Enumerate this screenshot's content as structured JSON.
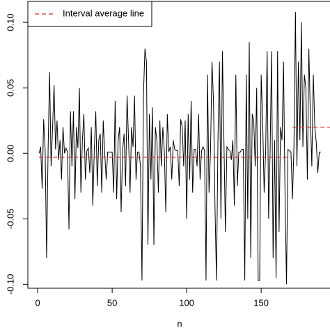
{
  "chart_data": {
    "type": "line",
    "x_label": "n",
    "x": [
      1,
      2,
      3,
      4,
      5,
      6,
      7,
      8,
      9,
      10,
      11,
      12,
      13,
      14,
      15,
      16,
      17,
      18,
      19,
      20,
      21,
      22,
      23,
      24,
      25,
      26,
      27,
      28,
      29,
      30,
      31,
      32,
      33,
      34,
      35,
      36,
      37,
      38,
      39,
      40,
      41,
      42,
      43,
      44,
      45,
      46,
      47,
      48,
      49,
      50,
      51,
      52,
      53,
      54,
      55,
      56,
      57,
      58,
      59,
      60,
      61,
      62,
      63,
      64,
      65,
      66,
      67,
      68,
      69,
      70,
      71,
      72,
      73,
      74,
      75,
      76,
      77,
      78,
      79,
      80,
      81,
      82,
      83,
      84,
      85,
      86,
      87,
      88,
      89,
      90,
      91,
      92,
      93,
      94,
      95,
      96,
      97,
      98,
      99,
      100,
      101,
      102,
      103,
      104,
      105,
      106,
      107,
      108,
      109,
      110,
      111,
      112,
      113,
      114,
      115,
      116,
      117,
      118,
      119,
      120,
      121,
      122,
      123,
      124,
      125,
      126,
      127,
      128,
      129,
      130,
      131,
      132,
      133,
      134,
      135,
      136,
      137,
      138,
      139,
      140,
      141,
      142,
      143,
      144,
      145,
      146,
      147,
      148,
      149,
      150,
      151,
      152,
      153,
      154,
      155,
      156,
      157,
      158,
      159,
      160,
      161,
      162,
      163,
      164,
      165,
      166,
      167,
      168,
      169,
      170,
      171,
      172,
      173,
      174,
      175,
      176,
      177,
      178,
      179,
      180,
      181,
      182,
      183,
      184,
      185,
      186,
      187,
      188,
      189,
      190
    ],
    "series": [
      {
        "color": "#000000",
        "values": [
          0,
          0.005,
          -0.027,
          0.026,
          0.003,
          -0.08,
          0.003,
          0.062,
          -0.01,
          0.02,
          0.052,
          0.003,
          0.025,
          -0.005,
          0.01,
          -0.02,
          0.02,
          0,
          0.004,
          0.001,
          -0.058,
          0.032,
          -0.01,
          0.032,
          -0.035,
          0.02,
          0.004,
          0.05,
          -0.03,
          0.01,
          0.03,
          -0.02,
          0.002,
          0.004,
          -0.015,
          0.02,
          -0.04,
          0.003,
          0.032,
          -0.025,
          0.01,
          0.015,
          -0.03,
          0.025,
          0,
          -0.02,
          0.001,
          0.001,
          0.001,
          0.001,
          -0.03,
          0.04,
          -0.035,
          0.01,
          0.02,
          -0.045,
          0.002,
          0.015,
          -0.025,
          0.044,
          0.01,
          -0.03,
          0.02,
          0.005,
          0.044,
          -0.02,
          0.001,
          0.001,
          -0.01,
          -0.097,
          0.045,
          0.08,
          0.07,
          -0.07,
          0.03,
          -0.02,
          0.035,
          -0.07,
          0.02,
          0.01,
          -0.03,
          0.025,
          -0.01,
          0.02,
          0.002,
          -0.045,
          0.03,
          0.001,
          0.005,
          -0.02,
          0.01,
          0.003,
          0.002,
          0.002,
          -0.025,
          0.026,
          0.02,
          -0.01,
          0.025,
          -0.05,
          0.03,
          -0.02,
          0.04,
          -0.03,
          0.003,
          0.003,
          -0.01,
          0.03,
          -0.02,
          0.002,
          0.005,
          0.002,
          -0.097,
          0.06,
          -0.03,
          0.001,
          0.07,
          0.04,
          -0.04,
          -0.097,
          0.01,
          0.07,
          -0.05,
          0.078,
          0.01,
          -0.06,
          0.005,
          0.003,
          0.002,
          -0.005,
          0.01,
          -0.04,
          0.06,
          -0.025,
          0.001,
          0.001,
          0.003,
          0.003,
          -0.097,
          0.06,
          -0.05,
          0.085,
          -0.08,
          0.03,
          0.025,
          -0.01,
          0.05,
          -0.097,
          -0.097,
          0.06,
          0.025,
          -0.03,
          0.001,
          0.078,
          -0.05,
          0.001,
          0.078,
          -0.08,
          0.01,
          -0.095,
          0.078,
          -0.06,
          0.02,
          0.01,
          0.07,
          -0.03,
          -0.1,
          0.003,
          0.002,
          0.001,
          -0.035,
          0.005,
          0.108,
          -0.01,
          0.07,
          0.01,
          0.1,
          0.005,
          0.06,
          0.05,
          -0.02,
          0.08,
          0.03,
          -0.01,
          0.06,
          0.02,
          0.008,
          -0.015,
          0.001,
          0.001
        ]
      }
    ],
    "average_lines": [
      {
        "y": -0.003,
        "x": [
          1,
          170
        ]
      },
      {
        "y": 0.02,
        "x": [
          171,
          197
        ]
      }
    ],
    "legend": {
      "label": "Interval average line",
      "color": "#d62728",
      "corner": "top-left"
    },
    "xlim": [
      -6.6,
      197.6
    ],
    "ylim": [
      -0.103,
      0.116
    ],
    "xticks": [
      0,
      50,
      100,
      150
    ],
    "yticks": [
      {
        "value": 0.1,
        "label": "0.10"
      },
      0.05,
      {
        "value": 0,
        "label": "0.00"
      },
      -0.05,
      {
        "value": -0.1,
        "label": "-0.10"
      }
    ]
  }
}
